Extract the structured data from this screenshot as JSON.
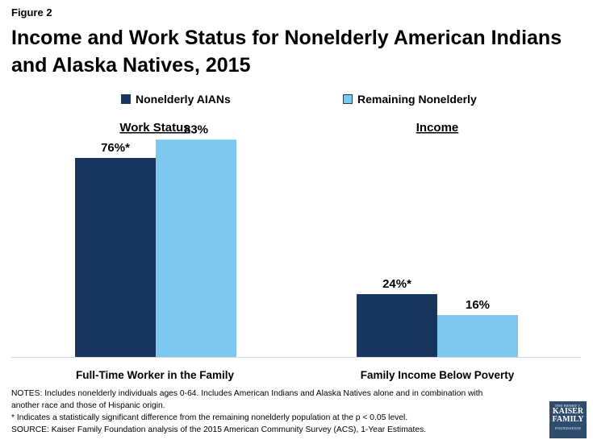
{
  "header": {
    "figure_label": "Figure 2",
    "title_line1": "Income and Work Status for Nonelderly American Indians",
    "title_line2": "and Alaska Natives, 2015"
  },
  "legend": {
    "items": [
      {
        "label": "Nonelderly AIANs",
        "color": "#17375e"
      },
      {
        "label": "Remaining Nonelderly",
        "color": "#7dc8ee"
      }
    ]
  },
  "chart_data": {
    "type": "bar",
    "groups": [
      {
        "heading": "Work Status",
        "category": "Full-Time Worker in the Family",
        "values": [
          76,
          83
        ],
        "labels": [
          "76%*",
          "83%"
        ]
      },
      {
        "heading": "Income",
        "category": "Family Income Below Poverty",
        "values": [
          24,
          16
        ],
        "labels": [
          "24%*",
          "16%"
        ]
      }
    ],
    "series": [
      {
        "name": "Nonelderly AIANs",
        "color": "#17375e"
      },
      {
        "name": "Remaining Nonelderly",
        "color": "#7dc8ee"
      }
    ],
    "ylim": [
      0,
      100
    ],
    "grid": false
  },
  "notes": {
    "line1": "NOTES:  Includes nonelderly individuals ages 0-64. Includes American Indians and Alaska Natives alone and in combination with",
    "line2": "another race and those of Hispanic origin.",
    "line3": "* Indicates a statistically significant difference from the remaining nonelderly population at the p < 0.05 level.",
    "line4": "SOURCE: Kaiser Family Foundation analysis of the 2015 American Community Survey (ACS), 1-Year Estimates."
  },
  "logo": {
    "small_top": "THE HENRY J.",
    "line1": "KAISER",
    "line2": "FAMILY",
    "small_bottom": "FOUNDATION"
  }
}
